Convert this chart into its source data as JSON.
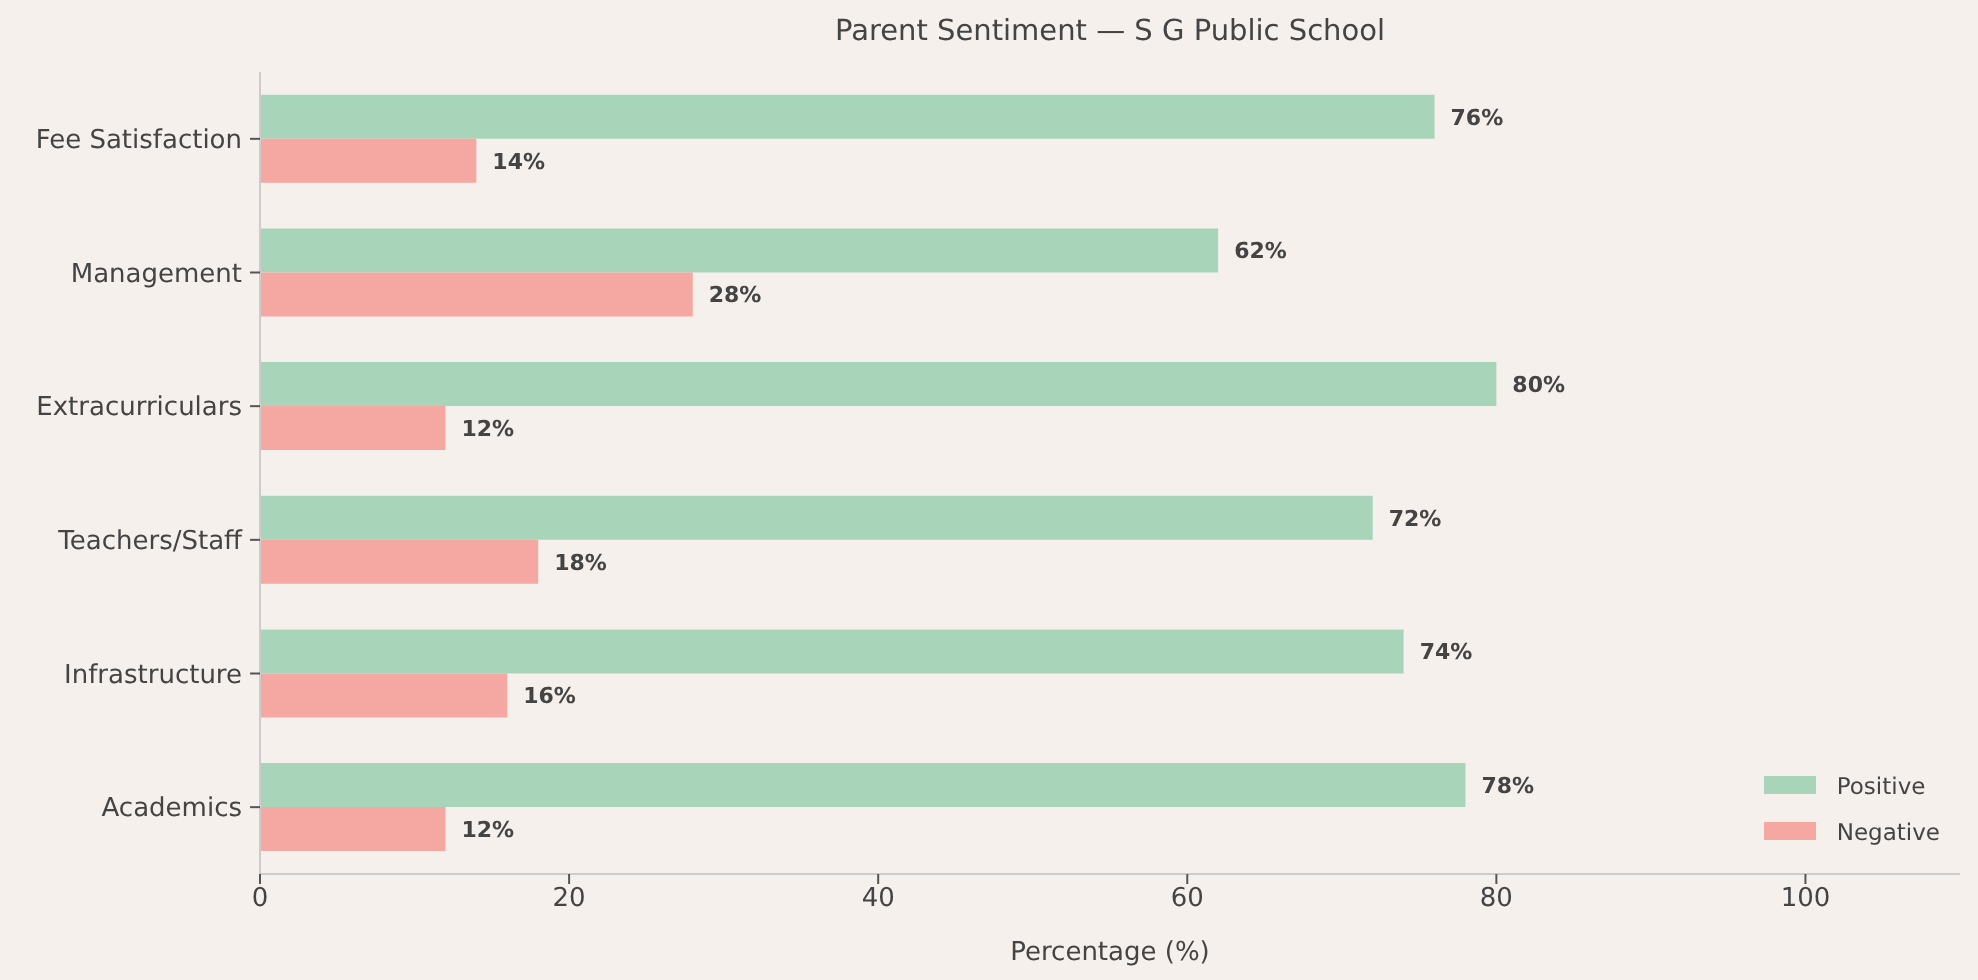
{
  "chart_data": {
    "type": "bar",
    "orientation": "horizontal",
    "title": "Parent Sentiment — S G Public School",
    "xlabel": "Percentage (%)",
    "categories": [
      "Fee Satisfaction",
      "Management",
      "Extracurriculars",
      "Teachers/Staff",
      "Infrastructure",
      "Academics"
    ],
    "series": [
      {
        "name": "Positive",
        "color": "#a8d5ba",
        "values": [
          76,
          62,
          80,
          72,
          74,
          78
        ],
        "value_labels": [
          "76%",
          "62%",
          "80%",
          "72%",
          "74%",
          "78%"
        ]
      },
      {
        "name": "Negative",
        "color": "#f5a7a2",
        "values": [
          14,
          28,
          12,
          18,
          16,
          12
        ],
        "value_labels": [
          "14%",
          "28%",
          "12%",
          "18%",
          "16%",
          "12%"
        ]
      }
    ],
    "xlim": [
      0,
      110
    ],
    "xticks": [
      0,
      20,
      40,
      60,
      80,
      100
    ],
    "grid": false,
    "legend": "bottom right"
  }
}
